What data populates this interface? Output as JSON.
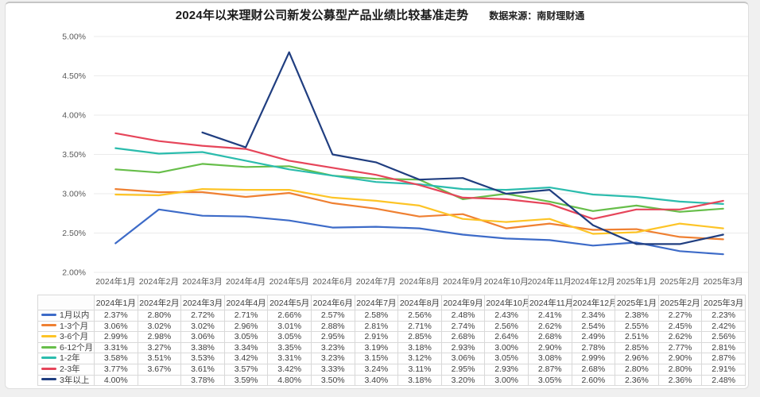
{
  "chart_data": {
    "type": "line",
    "title": "2024年以来理财公司新发公募型产品业绩比较基准走势",
    "source": "数据来源：南财理财通",
    "grid": true,
    "legend_position": "table-left-column",
    "ylim": [
      2.0,
      5.0
    ],
    "ytick_step": 0.5,
    "yticks": [
      "5.00%",
      "4.50%",
      "4.00%",
      "3.50%",
      "3.00%",
      "2.50%",
      "2.00%"
    ],
    "x": [
      "2024年1月",
      "2024年2月",
      "2024年3月",
      "2024年4月",
      "2024年5月",
      "2024年6月",
      "2024年7月",
      "2024年8月",
      "2024年9月",
      "2024年10月",
      "2024年11月",
      "2024年12月",
      "2025年1月",
      "2025年2月",
      "2025年3月"
    ],
    "unit": "%",
    "series": [
      {
        "name": "1月以内",
        "color": "#3d6bc8",
        "values": [
          2.37,
          2.8,
          2.72,
          2.71,
          2.66,
          2.57,
          2.58,
          2.56,
          2.48,
          2.43,
          2.41,
          2.34,
          2.38,
          2.27,
          2.23
        ]
      },
      {
        "name": "1-3个月",
        "color": "#ef8032",
        "values": [
          3.06,
          3.02,
          3.02,
          2.96,
          3.01,
          2.88,
          2.81,
          2.71,
          2.74,
          2.56,
          2.62,
          2.54,
          2.55,
          2.45,
          2.42
        ]
      },
      {
        "name": "3-6个月",
        "color": "#fdc426",
        "values": [
          2.99,
          2.98,
          3.06,
          3.05,
          3.05,
          2.95,
          2.91,
          2.85,
          2.68,
          2.64,
          2.68,
          2.49,
          2.51,
          2.62,
          2.56
        ]
      },
      {
        "name": "6-12个月",
        "color": "#67be4a",
        "values": [
          3.31,
          3.27,
          3.38,
          3.34,
          3.35,
          3.23,
          3.19,
          3.18,
          2.93,
          3.0,
          2.9,
          2.78,
          2.85,
          2.77,
          2.81
        ]
      },
      {
        "name": "1-2年",
        "color": "#2bbcad",
        "values": [
          3.58,
          3.51,
          3.53,
          3.42,
          3.31,
          3.23,
          3.15,
          3.12,
          3.06,
          3.05,
          3.08,
          2.99,
          2.96,
          2.9,
          2.87
        ]
      },
      {
        "name": "2-3年",
        "color": "#e6455a",
        "values": [
          3.77,
          3.67,
          3.61,
          3.57,
          3.42,
          3.33,
          3.24,
          3.11,
          2.95,
          2.93,
          2.87,
          2.68,
          2.8,
          2.8,
          2.91
        ]
      },
      {
        "name": "3年以上",
        "color": "#203e80",
        "values": [
          4.0,
          null,
          3.78,
          3.59,
          4.8,
          3.5,
          3.4,
          3.18,
          3.2,
          3.0,
          3.05,
          2.6,
          2.36,
          2.36,
          2.48
        ]
      }
    ]
  }
}
